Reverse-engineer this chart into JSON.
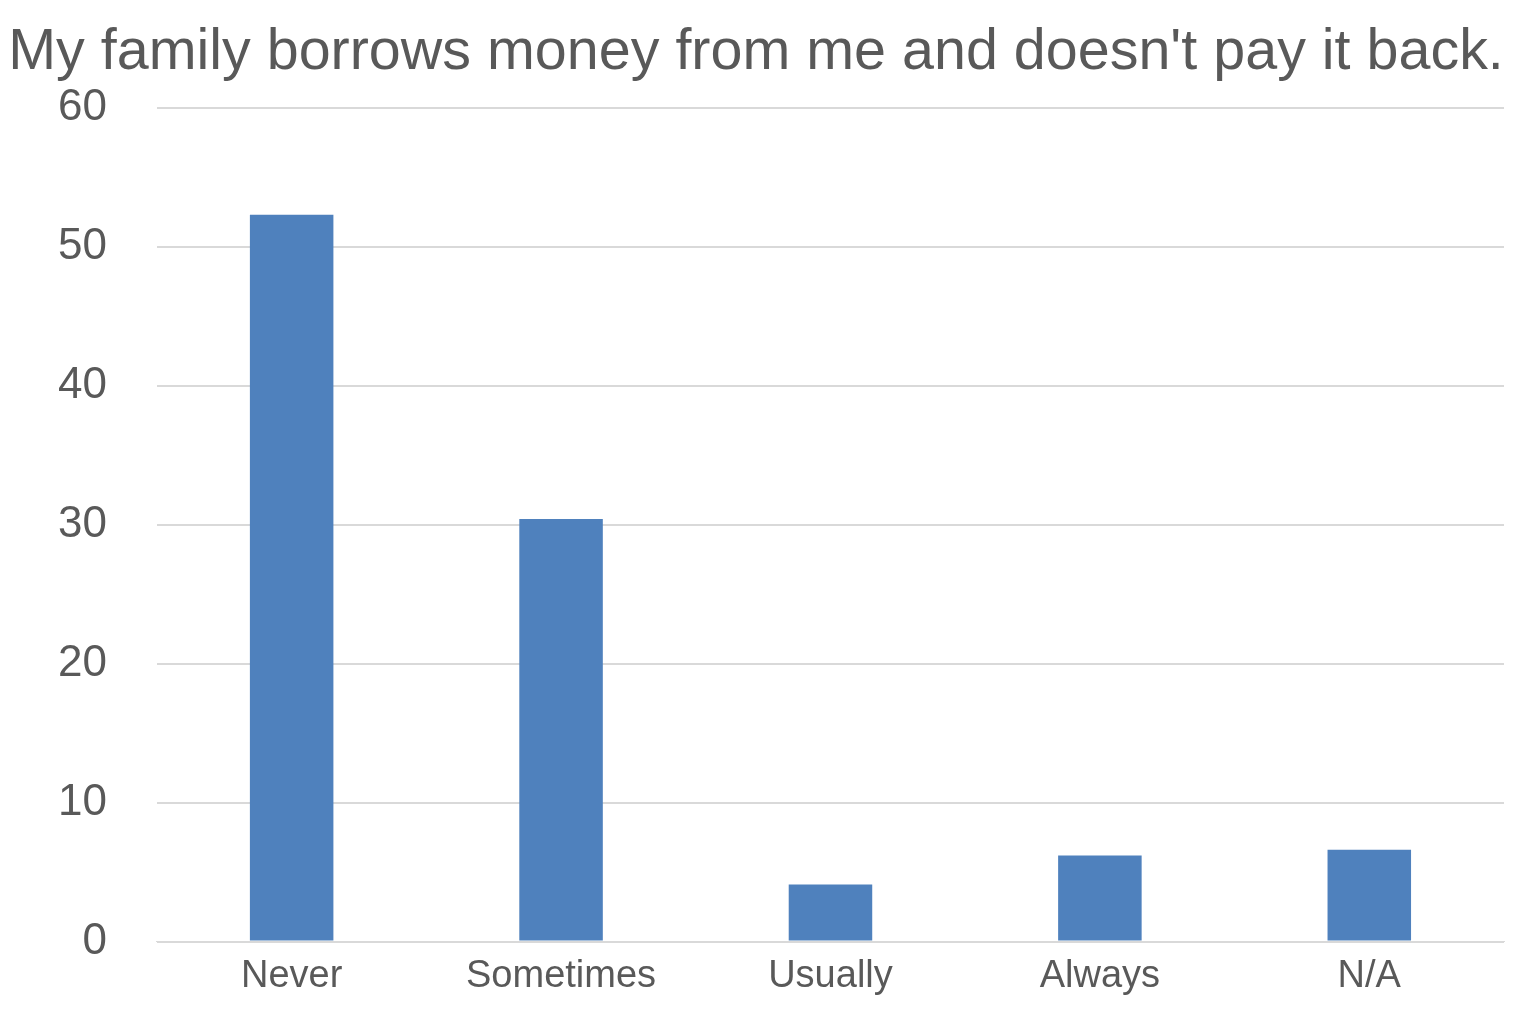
{
  "chart_data": {
    "type": "bar",
    "title": "My family borrows money from me and doesn't pay it back.",
    "categories": [
      "Never",
      "Sometimes",
      "Usually",
      "Always",
      "N/A"
    ],
    "values": [
      52.3,
      30.4,
      4.1,
      6.2,
      6.6
    ],
    "color": "#4f81bd",
    "ylim": [
      0,
      60
    ],
    "yticks": [
      0,
      10,
      20,
      30,
      40,
      50,
      60
    ],
    "grid": "y",
    "legend": false
  }
}
